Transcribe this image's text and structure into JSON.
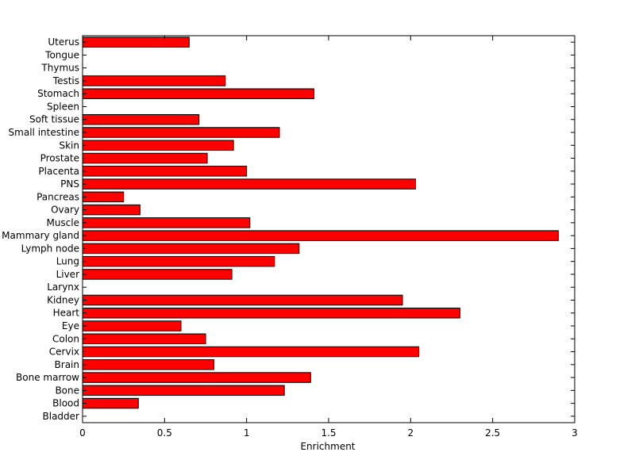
{
  "chart_data": {
    "type": "bar",
    "orientation": "horizontal",
    "xlabel": "Enrichment",
    "xlim": [
      0,
      3
    ],
    "xticks": [
      0,
      0.5,
      1,
      1.5,
      2,
      2.5,
      3
    ],
    "xtick_labels": [
      "0",
      "0.5",
      "1",
      "1.5",
      "2",
      "2.5",
      "3"
    ],
    "grid": false,
    "bar_color": "#ff0000",
    "categories": [
      "Bladder",
      "Blood",
      "Bone",
      "Bone marrow",
      "Brain",
      "Cervix",
      "Colon",
      "Eye",
      "Heart",
      "Kidney",
      "Larynx",
      "Liver",
      "Lung",
      "Lymph node",
      "Mammary gland",
      "Muscle",
      "Ovary",
      "Pancreas",
      "PNS",
      "Placenta",
      "Prostate",
      "Skin",
      "Small intestine",
      "Soft tissue",
      "Spleen",
      "Stomach",
      "Testis",
      "Thymus",
      "Tongue",
      "Uterus"
    ],
    "values": [
      0,
      0.34,
      1.23,
      1.39,
      0.8,
      2.05,
      0.75,
      0.6,
      2.3,
      1.95,
      0,
      0.91,
      1.17,
      1.32,
      2.9,
      1.02,
      0.35,
      0.25,
      2.03,
      1.0,
      0.76,
      0.92,
      1.2,
      0.71,
      0,
      1.41,
      0.87,
      0,
      0,
      0.65
    ]
  }
}
